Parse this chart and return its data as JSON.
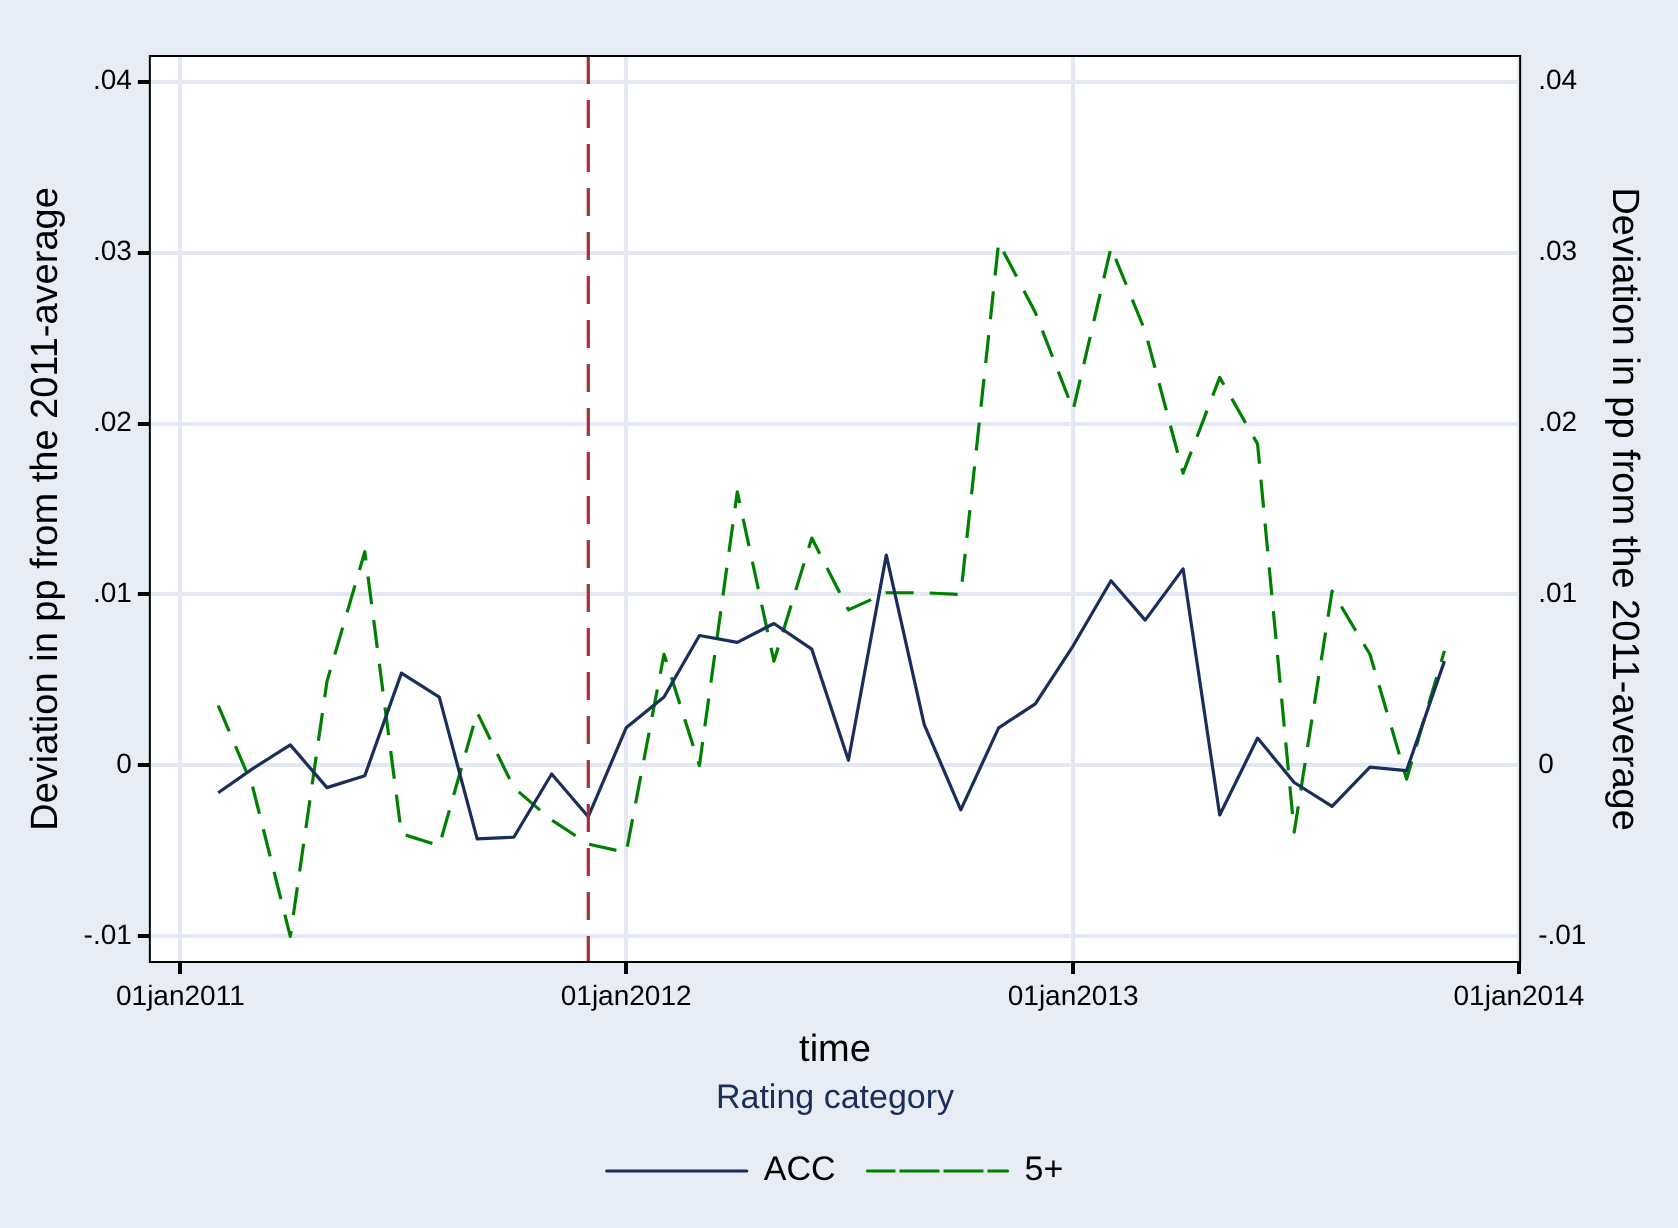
{
  "chart_data": {
    "type": "line",
    "xlabel": "time",
    "ylabel": "Deviation in pp from the 2011-average",
    "y2label": "Deviation in pp from the 2011-average",
    "legend_title": "Rating category",
    "x": [
      "2011-02",
      "2011-03",
      "2011-04",
      "2011-05",
      "2011-06",
      "2011-07",
      "2011-08",
      "2011-09",
      "2011-10",
      "2011-11",
      "2011-12",
      "2012-01",
      "2012-02",
      "2012-03",
      "2012-04",
      "2012-05",
      "2012-06",
      "2012-07",
      "2012-08",
      "2012-09",
      "2012-10",
      "2012-11",
      "2012-12",
      "2013-01",
      "2013-02",
      "2013-03",
      "2013-04",
      "2013-05",
      "2013-06",
      "2013-07",
      "2013-08",
      "2013-09",
      "2013-10",
      "2013-11"
    ],
    "series": [
      {
        "name": "ACC",
        "color": "#1a2e5c",
        "line_style": "solid",
        "values": [
          -0.0016,
          -0.0002,
          0.0012,
          -0.0013,
          -0.0006,
          0.0054,
          0.004,
          -0.0043,
          -0.0042,
          -0.0005,
          -0.003,
          0.0022,
          0.004,
          0.0076,
          0.0072,
          0.0083,
          0.0068,
          0.0003,
          0.0123,
          0.0024,
          -0.0026,
          0.0022,
          0.0036,
          0.007,
          0.0108,
          0.0085,
          0.0115,
          -0.0029,
          0.0016,
          -0.001,
          -0.0024,
          -0.0001,
          -0.0003,
          0.0061
        ]
      },
      {
        "name": "5+",
        "color": "#008000",
        "line_style": "dashed",
        "values": [
          0.0035,
          -0.0012,
          -0.01,
          0.0049,
          0.0125,
          -0.004,
          -0.0047,
          0.0031,
          -0.0013,
          -0.0032,
          -0.0046,
          -0.0051,
          0.0065,
          0.0,
          0.016,
          0.0061,
          0.0133,
          0.0091,
          0.0101,
          0.0101,
          0.01,
          0.0306,
          0.0265,
          0.0208,
          0.0303,
          0.0254,
          0.0171,
          0.0227,
          0.0188,
          -0.0039,
          0.0102,
          0.0065,
          -0.0008,
          0.0067
        ]
      }
    ],
    "xlim": [
      "2010-12-07",
      "2014-01-02"
    ],
    "xticks": [
      {
        "value": "2011-01-01",
        "label": "01jan2011"
      },
      {
        "value": "2012-01-01",
        "label": "01jan2012"
      },
      {
        "value": "2013-01-01",
        "label": "01jan2013"
      },
      {
        "value": "2014-01-01",
        "label": "01jan2014"
      }
    ],
    "ylim": [
      -0.0115,
      0.0415
    ],
    "yticks": [
      {
        "value": -0.01,
        "label": "-.01"
      },
      {
        "value": 0,
        "label": "0"
      },
      {
        "value": 0.01,
        "label": ".01"
      },
      {
        "value": 0.02,
        "label": ".02"
      },
      {
        "value": 0.03,
        "label": ".03"
      },
      {
        "value": 0.04,
        "label": ".04"
      }
    ],
    "y2lim": [
      -0.0115,
      0.0415
    ],
    "y2ticks": [
      {
        "value": -0.01,
        "label": "-.01"
      },
      {
        "value": 0,
        "label": "0"
      },
      {
        "value": 0.01,
        "label": ".01"
      },
      {
        "value": 0.02,
        "label": ".02"
      },
      {
        "value": 0.03,
        "label": ".03"
      },
      {
        "value": 0.04,
        "label": ".04"
      }
    ],
    "ref_lines": [
      {
        "axis": "x",
        "value": "2011-12",
        "color": "#a83232",
        "line_style": "dashed"
      }
    ],
    "grid": true,
    "legend": "bottom",
    "marker": "none"
  }
}
